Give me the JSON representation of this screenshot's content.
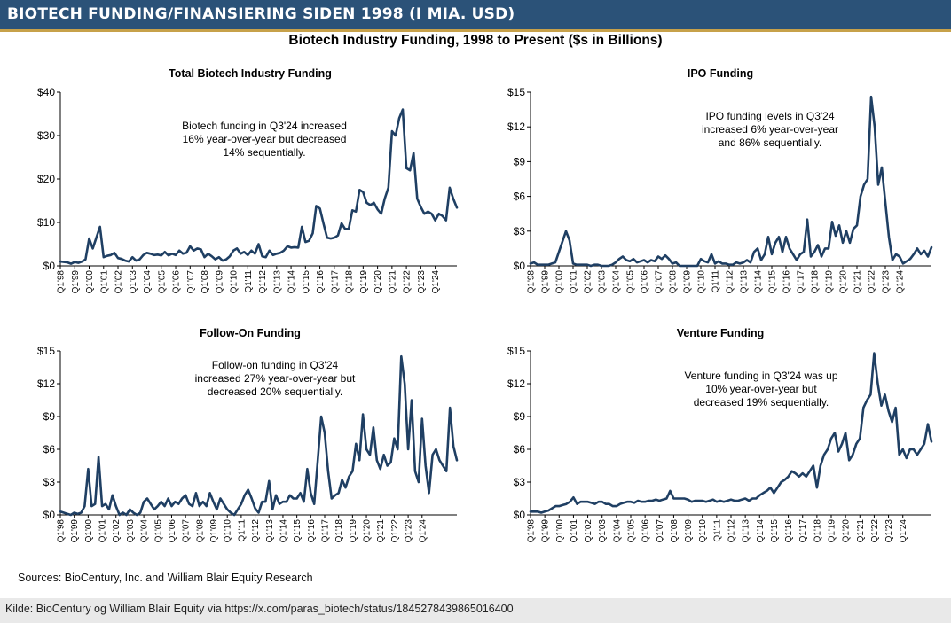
{
  "header": {
    "banner_title": "BIOTECH FUNDING/FINANSIERING SIDEN 1998 (I MIA. USD)",
    "main_title": "Biotech Industry Funding, 1998 to Present ($s in Billions)",
    "sources": "Sources: BioCentury, Inc. and William Blair Equity Research",
    "footer": "Kilde: BioCentury og William Blair Equity via https://x.com/paras_biotech/status/1845278439865016400"
  },
  "colors": {
    "line": "#1f3f63",
    "banner": "#2b5278",
    "accent": "#c7a14a"
  },
  "chart_data": [
    {
      "type": "line",
      "title": "Total Biotech Industry Funding",
      "ylim": [
        0,
        40
      ],
      "yticks": [
        "$0",
        "$10",
        "$20",
        "$30",
        "$40"
      ],
      "xticks": [
        "Q1'98",
        "Q1'99",
        "Q1'00",
        "Q1'01",
        "Q1'02",
        "Q1'03",
        "Q1'04",
        "Q1'05",
        "Q1'06",
        "Q1'07",
        "Q1'08",
        "Q1'09",
        "Q1'10",
        "Q1'11",
        "Q1'12",
        "Q1'13",
        "Q1'14",
        "Q1'15",
        "Q1'16",
        "Q1'17",
        "Q1'18",
        "Q1'19",
        "Q1'20",
        "Q1'21",
        "Q1'22",
        "Q1'23",
        "Q1'24"
      ],
      "annotation": [
        "Biotech funding in Q3'24 increased",
        "16% year-over-year but decreased",
        "14% sequentially."
      ],
      "values": [
        1.0,
        0.9,
        0.8,
        0.5,
        0.9,
        0.7,
        1.0,
        1.5,
        6.3,
        4.0,
        6.5,
        9.0,
        2.0,
        2.3,
        2.5,
        3.0,
        1.8,
        1.6,
        1.2,
        1.0,
        2.0,
        1.2,
        1.5,
        2.5,
        3.0,
        2.8,
        2.5,
        2.6,
        2.4,
        3.2,
        2.4,
        2.8,
        2.5,
        3.5,
        2.8,
        3.0,
        4.5,
        3.5,
        4.0,
        3.8,
        2.0,
        2.8,
        2.2,
        1.5,
        2.0,
        1.2,
        1.5,
        2.2,
        3.5,
        4.0,
        2.8,
        3.2,
        2.5,
        3.5,
        2.8,
        5.0,
        2.2,
        2.0,
        3.5,
        2.5,
        2.8,
        3.0,
        3.5,
        4.5,
        4.2,
        4.3,
        4.2,
        9.0,
        5.5,
        5.8,
        7.5,
        13.8,
        13.2,
        9.8,
        6.5,
        6.3,
        6.5,
        7.0,
        9.8,
        8.5,
        8.5,
        12.8,
        12.5,
        17.5,
        17.0,
        14.5,
        14.0,
        14.5,
        13.0,
        12.0,
        15.5,
        18.0,
        31.0,
        30.0,
        34.0,
        36.0,
        22.5,
        22.0,
        26.0,
        15.5,
        13.5,
        12.0,
        12.5,
        12.0,
        10.5,
        12.0,
        11.5,
        10.5,
        18.0,
        15.5,
        13.4
      ]
    },
    {
      "type": "line",
      "title": "IPO Funding",
      "ylim": [
        0,
        15
      ],
      "yticks": [
        "$0",
        "$3",
        "$6",
        "$9",
        "$12",
        "$15"
      ],
      "xticks": [
        "Q1'98",
        "Q1'99",
        "Q1'00",
        "Q1'01",
        "Q1'02",
        "Q1'03",
        "Q1'04",
        "Q1'05",
        "Q1'06",
        "Q1'07",
        "Q1'08",
        "Q1'09",
        "Q1'10",
        "Q1'11",
        "Q1'12",
        "Q1'13",
        "Q1'14",
        "Q1'15",
        "Q1'16",
        "Q1'17",
        "Q1'18",
        "Q1'19",
        "Q1'20",
        "Q1'21",
        "Q1'22",
        "Q1'23",
        "Q1'24"
      ],
      "annotation": [
        "IPO funding levels in Q3'24",
        "increased 6% year-over-year",
        "and 86% sequentially."
      ],
      "values": [
        0.2,
        0.3,
        0.1,
        0.1,
        0.1,
        0.1,
        0.2,
        0.3,
        1.2,
        2.1,
        3.0,
        2.2,
        0.2,
        0.1,
        0.1,
        0.1,
        0.1,
        0.0,
        0.1,
        0.1,
        0.0,
        0.0,
        0.0,
        0.1,
        0.3,
        0.6,
        0.8,
        0.5,
        0.4,
        0.6,
        0.3,
        0.4,
        0.5,
        0.3,
        0.5,
        0.4,
        0.8,
        0.6,
        0.9,
        0.6,
        0.2,
        0.3,
        0.0,
        0.0,
        0.0,
        0.0,
        0.0,
        0.0,
        0.6,
        0.4,
        0.3,
        1.0,
        0.2,
        0.4,
        0.2,
        0.2,
        0.1,
        0.1,
        0.3,
        0.2,
        0.3,
        0.5,
        0.3,
        1.2,
        1.5,
        0.5,
        1.0,
        2.5,
        1.0,
        2.0,
        2.5,
        1.2,
        2.5,
        1.5,
        1.0,
        0.5,
        1.0,
        1.2,
        4.0,
        0.8,
        1.2,
        1.8,
        0.8,
        1.5,
        1.5,
        3.8,
        2.6,
        3.5,
        2.0,
        3.0,
        2.0,
        3.2,
        3.5,
        6.0,
        7.0,
        7.5,
        14.6,
        12.0,
        7.0,
        8.5,
        5.5,
        2.5,
        0.5,
        1.0,
        0.8,
        0.2,
        0.4,
        0.6,
        1.0,
        1.5,
        1.0,
        1.3,
        0.8,
        1.6
      ]
    },
    {
      "type": "line",
      "title": "Follow-On Funding",
      "ylim": [
        0,
        15
      ],
      "yticks": [
        "$0",
        "$3",
        "$6",
        "$9",
        "$12",
        "$15"
      ],
      "xticks": [
        "Q1'98",
        "Q1'99",
        "Q1'00",
        "Q1'01",
        "Q1'02",
        "Q1'03",
        "Q1'04",
        "Q1'05",
        "Q1'06",
        "Q1'07",
        "Q1'08",
        "Q1'09",
        "Q1'10",
        "Q1'11",
        "Q1'12",
        "Q1'13",
        "Q1'14",
        "Q1'15",
        "Q1'16",
        "Q1'17",
        "Q1'18",
        "Q1'19",
        "Q1'20",
        "Q1'21",
        "Q1'22",
        "Q1'23",
        "Q1'24"
      ],
      "annotation": [
        "Follow-on funding in Q3'24",
        "increased 27% year-over-year but",
        "decreased 20% sequentially."
      ],
      "values": [
        0.3,
        0.2,
        0.1,
        0.0,
        0.2,
        0.1,
        0.2,
        0.8,
        4.2,
        0.8,
        1.0,
        5.3,
        0.8,
        1.0,
        0.5,
        1.8,
        0.8,
        0.0,
        0.2,
        0.0,
        0.5,
        0.2,
        0.0,
        0.2,
        1.2,
        1.5,
        1.0,
        0.5,
        0.8,
        1.2,
        0.8,
        1.5,
        0.8,
        1.2,
        1.0,
        1.5,
        1.8,
        1.0,
        0.8,
        2.0,
        0.8,
        1.2,
        0.8,
        2.0,
        1.2,
        0.5,
        1.5,
        1.0,
        0.5,
        0.2,
        0.0,
        0.5,
        1.0,
        1.8,
        2.3,
        1.5,
        0.6,
        0.2,
        1.2,
        1.2,
        3.1,
        0.5,
        1.8,
        1.0,
        1.2,
        1.2,
        1.8,
        1.5,
        1.5,
        2.0,
        1.2,
        4.2,
        2.0,
        1.0,
        5.0,
        9.0,
        7.5,
        4.0,
        1.5,
        1.8,
        2.0,
        3.2,
        2.5,
        3.5,
        4.0,
        6.5,
        5.0,
        9.2,
        6.0,
        5.5,
        8.0,
        5.0,
        4.2,
        5.5,
        4.5,
        4.8,
        7.0,
        6.0,
        14.5,
        12.0,
        6.0,
        10.5,
        4.0,
        3.0,
        8.8,
        4.5,
        2.0,
        5.5,
        6.0,
        5.0,
        4.5,
        4.0,
        9.8,
        6.3,
        5.0
      ]
    },
    {
      "type": "line",
      "title": "Venture Funding",
      "ylim": [
        0,
        15
      ],
      "yticks": [
        "$0",
        "$3",
        "$6",
        "$9",
        "$12",
        "$15"
      ],
      "xticks": [
        "Q1'98",
        "Q1'99",
        "Q1'00",
        "Q1'01",
        "Q1'02",
        "Q1'03",
        "Q1'04",
        "Q1'05",
        "Q1'06",
        "Q1'07",
        "Q1'08",
        "Q1'09",
        "Q1'10",
        "Q1'11",
        "Q1'12",
        "Q1'13",
        "Q1'14",
        "Q1'15",
        "Q1'16",
        "Q1'17",
        "Q1'18",
        "Q1'19",
        "Q1'20",
        "Q1'21",
        "Q1'22",
        "Q1'23",
        "Q1'24"
      ],
      "annotation": [
        "Venture funding in Q3'24 was up",
        "10% year-over-year but",
        "decreased 19% sequentially."
      ],
      "values": [
        0.3,
        0.3,
        0.3,
        0.2,
        0.3,
        0.4,
        0.6,
        0.8,
        0.8,
        0.9,
        1.0,
        1.2,
        1.6,
        1.0,
        1.2,
        1.2,
        1.2,
        1.1,
        1.0,
        1.2,
        1.2,
        1.0,
        1.0,
        0.8,
        0.8,
        1.0,
        1.1,
        1.2,
        1.2,
        1.1,
        1.3,
        1.2,
        1.2,
        1.3,
        1.3,
        1.4,
        1.3,
        1.4,
        1.5,
        2.2,
        1.5,
        1.5,
        1.5,
        1.5,
        1.4,
        1.2,
        1.3,
        1.3,
        1.3,
        1.2,
        1.3,
        1.4,
        1.2,
        1.3,
        1.2,
        1.3,
        1.4,
        1.3,
        1.3,
        1.4,
        1.5,
        1.3,
        1.5,
        1.5,
        1.8,
        2.0,
        2.2,
        2.5,
        2.0,
        2.5,
        3.0,
        3.2,
        3.5,
        4.0,
        3.8,
        3.5,
        3.8,
        3.5,
        4.0,
        4.5,
        2.5,
        4.5,
        5.5,
        6.0,
        7.0,
        7.5,
        5.8,
        6.5,
        7.5,
        5.0,
        5.5,
        6.5,
        7.0,
        9.8,
        10.5,
        11.0,
        14.8,
        12.0,
        10.0,
        11.0,
        9.5,
        8.5,
        9.8,
        5.5,
        6.0,
        5.2,
        6.0,
        6.0,
        5.5,
        6.0,
        6.5,
        8.3,
        6.7
      ]
    }
  ]
}
